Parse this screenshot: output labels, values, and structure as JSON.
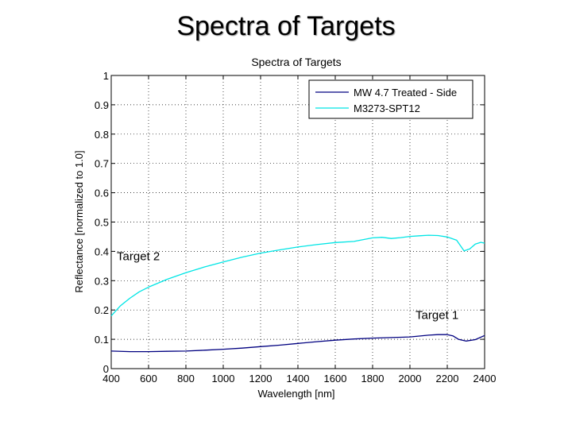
{
  "slide": {
    "title": "Spectra of Targets"
  },
  "chart_data": {
    "type": "line",
    "title": "Spectra of Targets",
    "xlabel": "Wavelength [nm]",
    "ylabel": "Reflectance [normalized to 1.0]",
    "xlim": [
      400,
      2400
    ],
    "ylim": [
      0,
      1
    ],
    "xticks": [
      "400",
      "600",
      "800",
      "1000",
      "1200",
      "1400",
      "1600",
      "1800",
      "2000",
      "2200",
      "2400"
    ],
    "yticks": [
      "0",
      "0.1",
      "0.2",
      "0.3",
      "0.4",
      "0.5",
      "0.6",
      "0.7",
      "0.8",
      "0.9",
      "1"
    ],
    "grid": true,
    "legend_position": "top-right",
    "series": [
      {
        "name": "MW 4.7 Treated - Side",
        "color": "#000080",
        "x": [
          400,
          500,
          600,
          700,
          800,
          900,
          1000,
          1100,
          1200,
          1300,
          1400,
          1500,
          1600,
          1700,
          1800,
          1900,
          2000,
          2050,
          2100,
          2150,
          2200,
          2230,
          2260,
          2300,
          2350,
          2400
        ],
        "y": [
          0.06,
          0.058,
          0.058,
          0.059,
          0.06,
          0.063,
          0.066,
          0.07,
          0.075,
          0.08,
          0.086,
          0.092,
          0.097,
          0.101,
          0.104,
          0.106,
          0.108,
          0.111,
          0.114,
          0.116,
          0.116,
          0.112,
          0.1,
          0.094,
          0.099,
          0.113
        ]
      },
      {
        "name": "M3273-SPT12",
        "color": "#00e5e5",
        "x": [
          400,
          450,
          500,
          550,
          600,
          700,
          800,
          900,
          1000,
          1100,
          1200,
          1300,
          1400,
          1500,
          1600,
          1700,
          1750,
          1800,
          1850,
          1900,
          1950,
          2000,
          2050,
          2100,
          2150,
          2200,
          2250,
          2290,
          2320,
          2350,
          2380,
          2400
        ],
        "y": [
          0.18,
          0.215,
          0.24,
          0.262,
          0.278,
          0.305,
          0.327,
          0.347,
          0.364,
          0.38,
          0.394,
          0.405,
          0.415,
          0.423,
          0.43,
          0.434,
          0.44,
          0.446,
          0.448,
          0.444,
          0.447,
          0.451,
          0.453,
          0.455,
          0.454,
          0.449,
          0.438,
          0.402,
          0.408,
          0.425,
          0.431,
          0.428
        ]
      }
    ],
    "annotations": [
      {
        "text": "Target 2",
        "x": 430,
        "y": 0.37
      },
      {
        "text": "Target 1",
        "x": 2030,
        "y": 0.17
      }
    ]
  }
}
